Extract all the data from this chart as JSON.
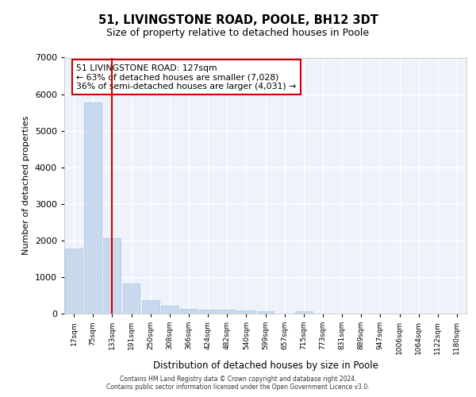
{
  "title_line1": "51, LIVINGSTONE ROAD, POOLE, BH12 3DT",
  "title_line2": "Size of property relative to detached houses in Poole",
  "xlabel": "Distribution of detached houses by size in Poole",
  "ylabel": "Number of detached properties",
  "annotation_line1": "51 LIVINGSTONE ROAD: 127sqm",
  "annotation_line2": "← 63% of detached houses are smaller (7,028)",
  "annotation_line3": "36% of semi-detached houses are larger (4,031) →",
  "bar_color": "#c8d9ee",
  "bar_edge_color": "#a8c4e0",
  "vline_color": "#cc0000",
  "categories": [
    "17sqm",
    "75sqm",
    "133sqm",
    "191sqm",
    "250sqm",
    "308sqm",
    "366sqm",
    "424sqm",
    "482sqm",
    "540sqm",
    "599sqm",
    "657sqm",
    "715sqm",
    "773sqm",
    "831sqm",
    "889sqm",
    "947sqm",
    "1006sqm",
    "1064sqm",
    "1122sqm",
    "1180sqm"
  ],
  "values": [
    1780,
    5770,
    2060,
    820,
    360,
    215,
    130,
    110,
    100,
    80,
    70,
    0,
    70,
    0,
    0,
    0,
    0,
    0,
    0,
    0,
    0
  ],
  "ylim": [
    0,
    7000
  ],
  "yticks": [
    0,
    1000,
    2000,
    3000,
    4000,
    5000,
    6000,
    7000
  ],
  "vline_x": 2.0,
  "background_color": "#eef2fb",
  "grid_color": "#ffffff",
  "footer_line1": "Contains HM Land Registry data © Crown copyright and database right 2024.",
  "footer_line2": "Contains public sector information licensed under the Open Government Licence v3.0."
}
